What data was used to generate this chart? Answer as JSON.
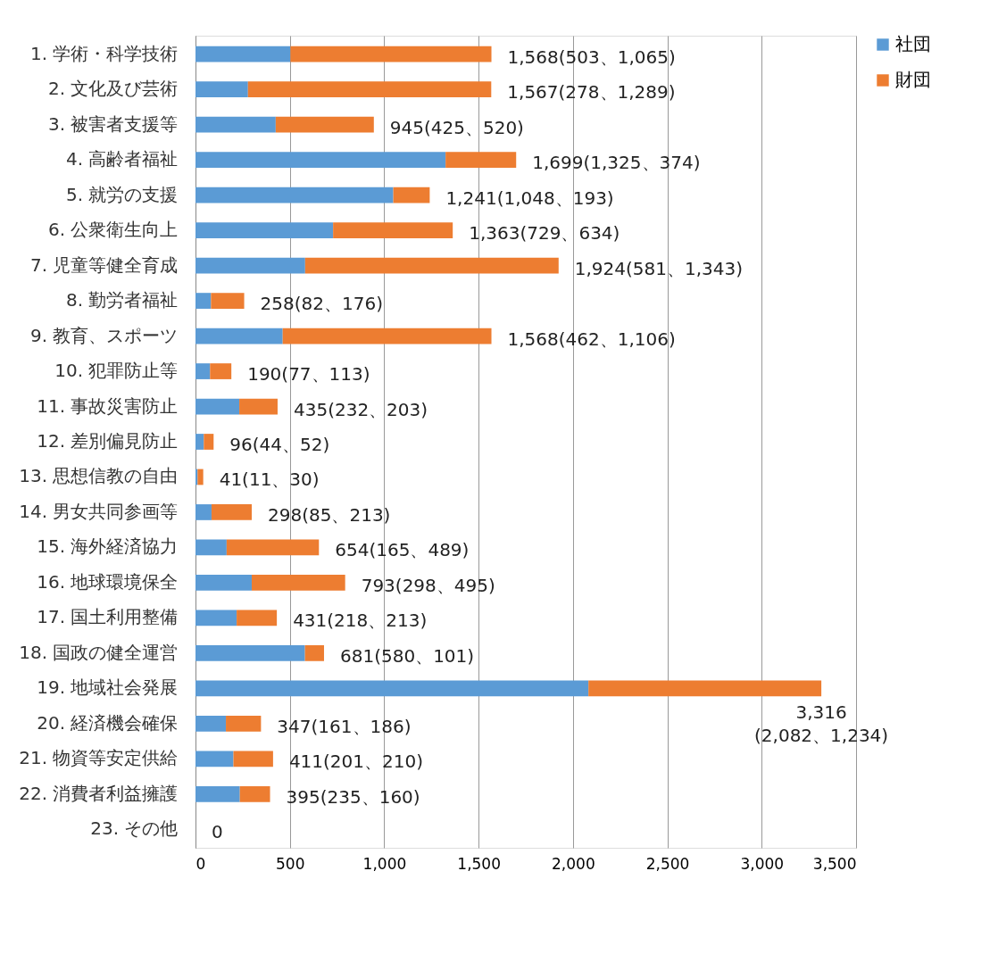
{
  "chart_data": {
    "type": "bar",
    "orientation": "horizontal",
    "stacked": true,
    "categories": [
      "1. 学術・科学技術",
      "2. 文化及び芸術",
      "3. 被害者支援等",
      "4. 高齢者福祉",
      "5. 就労の支援",
      "6. 公衆衛生向上",
      "7. 児童等健全育成",
      "8. 勤労者福祉",
      "9. 教育、スポーツ",
      "10. 犯罪防止等",
      "11. 事故災害防止",
      "12. 差別偏見防止",
      "13. 思想信教の自由",
      "14. 男女共同参画等",
      "15. 海外経済協力",
      "16. 地球環境保全",
      "17. 国土利用整備",
      "18. 国政の健全運営",
      "19. 地域社会発展",
      "20. 経済機会確保",
      "21. 物資等安定供給",
      "22. 消費者利益擁護",
      "23. その他"
    ],
    "series": [
      {
        "name": "社団",
        "color": "#5b9bd5",
        "values": [
          503,
          278,
          425,
          1325,
          1048,
          729,
          581,
          82,
          462,
          77,
          232,
          44,
          11,
          85,
          165,
          298,
          218,
          580,
          2082,
          161,
          201,
          235,
          0
        ]
      },
      {
        "name": "財団",
        "color": "#ed7d31",
        "values": [
          1065,
          1289,
          520,
          374,
          193,
          634,
          1343,
          176,
          1106,
          113,
          203,
          52,
          30,
          213,
          489,
          495,
          213,
          101,
          1234,
          186,
          210,
          160,
          0
        ]
      }
    ],
    "totals": [
      "1,568(503、1,065)",
      "1,567(278、1,289)",
      "945(425、520)",
      "1,699(1,325、374)",
      "1,241(1,048、193)",
      "1,363(729、634)",
      "1,924(581、1,343)",
      "258(82、176)",
      "1,568(462、1,106)",
      "190(77、113)",
      "435(232、203)",
      "96(44、52)",
      "41(11、30)",
      "298(85、213)",
      "654(165、489)",
      "793(298、495)",
      "431(218、213)",
      "681(580、101)",
      "3,316\n(2,082、1,234)",
      "347(161、186)",
      "411(201、210)",
      "395(235、160)",
      "0"
    ],
    "xlim": [
      0,
      3500
    ],
    "xticks": [
      0,
      {
        "value": 500,
        "label": "500"
      },
      {
        "value": 1000,
        "label": "1,000"
      },
      {
        "value": 1500,
        "label": "1,500"
      },
      {
        "value": 2000,
        "label": "2,000"
      },
      {
        "value": 2500,
        "label": "2,500"
      },
      {
        "value": 3000,
        "label": "3,000"
      },
      {
        "value": 3500,
        "label": "3,500"
      }
    ],
    "grid": "x",
    "legend": "right"
  }
}
